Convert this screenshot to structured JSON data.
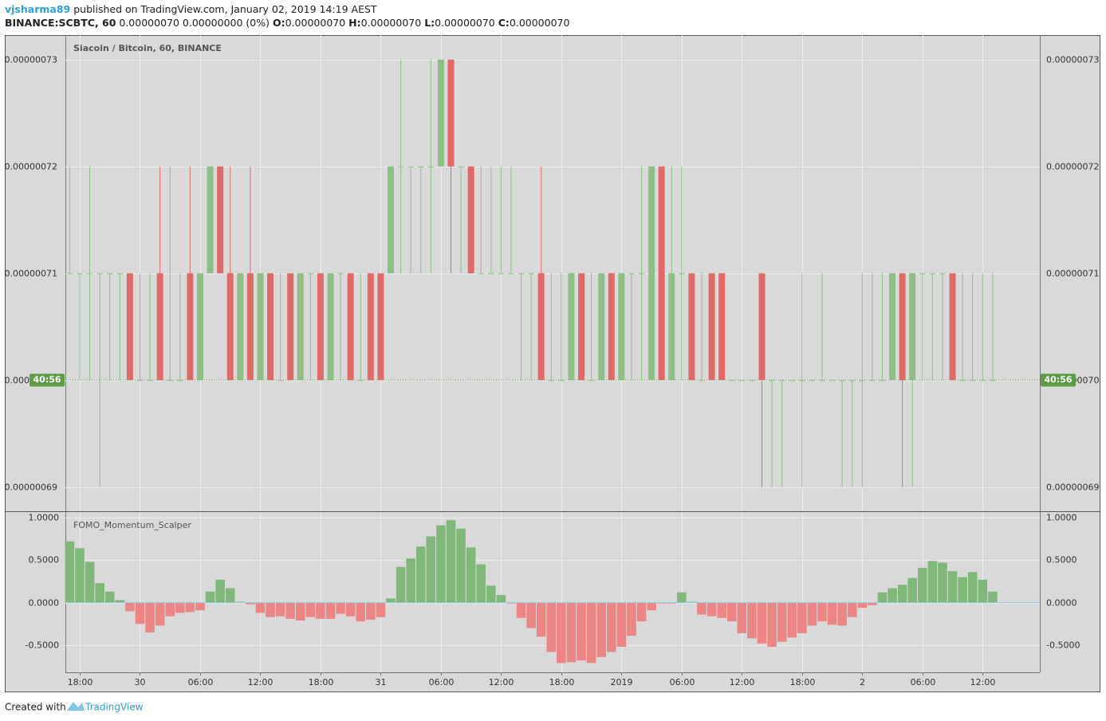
{
  "header": {
    "author": "vjsharma89",
    "published": "published on TradingView.com, January 02, 2019 14:19 AEST",
    "symbol": "BINANCE:SCBTC, 60",
    "change": "0.00000070 0.00000000 (0%)",
    "o_label": "O:",
    "o_value": "0.00000070",
    "h_label": "H:",
    "h_value": "0.00000070",
    "l_label": "L:",
    "l_value": "0.00000070",
    "c_label": "C:",
    "c_value": "0.00000070"
  },
  "footer": {
    "created": "Created with",
    "brand": "TradingView"
  },
  "chart_data": [
    {
      "type": "candlestick",
      "title": "Siacoin / Bitcoin, 60, BINANCE",
      "up_color": "#8fbf88",
      "down_color": "#e06a6a",
      "grid": true,
      "countdown": "40:56",
      "ylim": [
        6.878e-07,
        7.323e-07
      ],
      "yticks": [
        {
          "value": 6.9e-07,
          "label": "0.00000069"
        },
        {
          "value": 7e-07,
          "label": "0.00000070"
        },
        {
          "value": 7.1e-07,
          "label": "0.00000071"
        },
        {
          "value": 7.2e-07,
          "label": "0.00000072"
        },
        {
          "value": 7.3e-07,
          "label": "0.00000073"
        }
      ],
      "xlim": [
        -0.43,
        96.7
      ],
      "xticks": [
        {
          "value": 1,
          "label": "18:00"
        },
        {
          "value": 7,
          "label": "30"
        },
        {
          "value": 13,
          "label": "06:00"
        },
        {
          "value": 19,
          "label": "12:00"
        },
        {
          "value": 25,
          "label": "18:00"
        },
        {
          "value": 31,
          "label": "31"
        },
        {
          "value": 37,
          "label": "06:00"
        },
        {
          "value": 43,
          "label": "12:00"
        },
        {
          "value": 49,
          "label": "18:00"
        },
        {
          "value": 55,
          "label": "2019"
        },
        {
          "value": 61,
          "label": "06:00"
        },
        {
          "value": 67,
          "label": "12:00"
        },
        {
          "value": 73,
          "label": "18:00"
        },
        {
          "value": 79,
          "label": "2"
        },
        {
          "value": 85,
          "label": "06:00"
        },
        {
          "value": 91,
          "label": "12:00"
        }
      ],
      "open": [
        7.1e-07,
        7.1e-07,
        7.1e-07,
        7.1e-07,
        7.1e-07,
        7.1e-07,
        7.1e-07,
        7e-07,
        7e-07,
        7.1e-07,
        7e-07,
        7e-07,
        7.1e-07,
        7e-07,
        7.1e-07,
        7.2e-07,
        7.1e-07,
        7e-07,
        7.1e-07,
        7e-07,
        7.1e-07,
        7e-07,
        7.1e-07,
        7e-07,
        7.1e-07,
        7.1e-07,
        7e-07,
        7.1e-07,
        7.1e-07,
        7e-07,
        7.1e-07,
        7.1e-07,
        7.1e-07,
        7.2e-07,
        7.2e-07,
        7.2e-07,
        7.2e-07,
        7.2e-07,
        7.3e-07,
        7.2e-07,
        7.2e-07,
        7.1e-07,
        7.1e-07,
        7.1e-07,
        7.1e-07,
        7.1e-07,
        7.1e-07,
        7.1e-07,
        7e-07,
        7e-07,
        7e-07,
        7.1e-07,
        7e-07,
        7e-07,
        7.1e-07,
        7e-07,
        7.1e-07,
        7.1e-07,
        7e-07,
        7.2e-07,
        7e-07,
        7.1e-07,
        7.1e-07,
        7e-07,
        7.1e-07,
        7.1e-07,
        7e-07,
        7e-07,
        7e-07,
        7.1e-07,
        7e-07,
        7e-07,
        7e-07,
        7e-07,
        7e-07,
        7e-07,
        7e-07,
        7e-07,
        7e-07,
        7e-07,
        7e-07,
        7e-07,
        7e-07,
        7.1e-07,
        7e-07,
        7.1e-07,
        7.1e-07,
        7.1e-07,
        7.1e-07,
        7e-07,
        7e-07,
        7e-07,
        7e-07
      ],
      "high": [
        7.2e-07,
        7.1e-07,
        7.2e-07,
        7.1e-07,
        7.1e-07,
        7.1e-07,
        7.1e-07,
        7.1e-07,
        7.1e-07,
        7.2e-07,
        7.2e-07,
        7.1e-07,
        7.2e-07,
        7.1e-07,
        7.2e-07,
        7.2e-07,
        7.2e-07,
        7.1e-07,
        7.2e-07,
        7.1e-07,
        7.1e-07,
        7.1e-07,
        7.1e-07,
        7.1e-07,
        7.1e-07,
        7.1e-07,
        7.1e-07,
        7.1e-07,
        7.1e-07,
        7.1e-07,
        7.1e-07,
        7.1e-07,
        7.2e-07,
        7.3e-07,
        7.2e-07,
        7.2e-07,
        7.3e-07,
        7.3e-07,
        7.3e-07,
        7.2e-07,
        7.2e-07,
        7.2e-07,
        7.2e-07,
        7.2e-07,
        7.2e-07,
        7.1e-07,
        7.1e-07,
        7.2e-07,
        7.1e-07,
        7.1e-07,
        7.1e-07,
        7.1e-07,
        7.1e-07,
        7.1e-07,
        7.1e-07,
        7.1e-07,
        7.1e-07,
        7.2e-07,
        7.2e-07,
        7.2e-07,
        7.2e-07,
        7.2e-07,
        7.1e-07,
        7.1e-07,
        7.1e-07,
        7.1e-07,
        7e-07,
        7e-07,
        7e-07,
        7.1e-07,
        7e-07,
        7e-07,
        7e-07,
        7.1e-07,
        7e-07,
        7.1e-07,
        7e-07,
        7e-07,
        7e-07,
        7.1e-07,
        7.1e-07,
        7.1e-07,
        7.1e-07,
        7.1e-07,
        7.1e-07,
        7.1e-07,
        7.1e-07,
        7.1e-07,
        7.1e-07,
        7.1e-07,
        7.1e-07,
        7.1e-07,
        7.1e-07
      ],
      "low": [
        7.1e-07,
        7e-07,
        7e-07,
        6.9e-07,
        7e-07,
        7e-07,
        7e-07,
        7e-07,
        7e-07,
        7e-07,
        7e-07,
        7e-07,
        7e-07,
        7e-07,
        7.1e-07,
        7.1e-07,
        7e-07,
        7e-07,
        7e-07,
        7e-07,
        7e-07,
        7e-07,
        7e-07,
        7e-07,
        7e-07,
        7e-07,
        7e-07,
        7e-07,
        7e-07,
        7e-07,
        7e-07,
        7e-07,
        7.1e-07,
        7.1e-07,
        7.1e-07,
        7.1e-07,
        7.1e-07,
        7.2e-07,
        7.1e-07,
        7.1e-07,
        7.1e-07,
        7.1e-07,
        7.1e-07,
        7.1e-07,
        7.1e-07,
        7e-07,
        7e-07,
        7e-07,
        7e-07,
        7e-07,
        7e-07,
        7e-07,
        7e-07,
        7e-07,
        7e-07,
        7e-07,
        7e-07,
        7e-07,
        7e-07,
        7e-07,
        7e-07,
        7e-07,
        7e-07,
        7e-07,
        7e-07,
        7e-07,
        7e-07,
        7e-07,
        7e-07,
        6.9e-07,
        6.9e-07,
        6.9e-07,
        7e-07,
        6.9e-07,
        7e-07,
        7e-07,
        7e-07,
        6.9e-07,
        6.9e-07,
        6.9e-07,
        7e-07,
        7e-07,
        7e-07,
        6.9e-07,
        6.9e-07,
        7e-07,
        7e-07,
        7e-07,
        7e-07,
        7e-07,
        7e-07,
        7e-07,
        7e-07
      ],
      "close": [
        7.1e-07,
        7.1e-07,
        7.1e-07,
        7.1e-07,
        7.1e-07,
        7.1e-07,
        7e-07,
        7e-07,
        7e-07,
        7e-07,
        7e-07,
        7e-07,
        7e-07,
        7.1e-07,
        7.2e-07,
        7.1e-07,
        7e-07,
        7.1e-07,
        7e-07,
        7.1e-07,
        7e-07,
        7e-07,
        7e-07,
        7.1e-07,
        7.1e-07,
        7e-07,
        7.1e-07,
        7.1e-07,
        7e-07,
        7e-07,
        7e-07,
        7e-07,
        7.2e-07,
        7.2e-07,
        7.2e-07,
        7.2e-07,
        7.2e-07,
        7.3e-07,
        7.2e-07,
        7.2e-07,
        7.1e-07,
        7.1e-07,
        7.1e-07,
        7.1e-07,
        7.1e-07,
        7.1e-07,
        7.1e-07,
        7e-07,
        7e-07,
        7e-07,
        7.1e-07,
        7e-07,
        7e-07,
        7.1e-07,
        7e-07,
        7.1e-07,
        7.1e-07,
        7.1e-07,
        7.2e-07,
        7e-07,
        7.1e-07,
        7.1e-07,
        7e-07,
        7e-07,
        7e-07,
        7e-07,
        7e-07,
        7e-07,
        7e-07,
        7e-07,
        7e-07,
        7e-07,
        7e-07,
        7e-07,
        7e-07,
        7e-07,
        7e-07,
        7e-07,
        7e-07,
        7e-07,
        7e-07,
        7e-07,
        7.1e-07,
        7e-07,
        7.1e-07,
        7.1e-07,
        7.1e-07,
        7.1e-07,
        7e-07,
        7e-07,
        7e-07,
        7e-07,
        7e-07
      ]
    },
    {
      "type": "bar",
      "title": "FOMO_Momentum_Scalper",
      "positive_color": "#82b77b",
      "negative_color": "#ec8585",
      "zero_color": "#8ecae6",
      "grid": true,
      "ylim": [
        -0.82,
        1.066
      ],
      "yticks": [
        {
          "value": -0.5,
          "label": "-0.5000"
        },
        {
          "value": 0,
          "label": "0.0000"
        },
        {
          "value": 0.5,
          "label": "0.5000"
        },
        {
          "value": 1,
          "label": "1.0000"
        }
      ],
      "values": [
        0.72,
        0.64,
        0.48,
        0.23,
        0.13,
        0.03,
        -0.1,
        -0.25,
        -0.35,
        -0.27,
        -0.16,
        -0.12,
        -0.11,
        -0.09,
        0.13,
        0.27,
        0.17,
        0.01,
        -0.02,
        -0.12,
        -0.17,
        -0.16,
        -0.19,
        -0.21,
        -0.17,
        -0.19,
        -0.19,
        -0.13,
        -0.16,
        -0.22,
        -0.2,
        -0.17,
        0.05,
        0.42,
        0.52,
        0.66,
        0.78,
        0.91,
        0.97,
        0.87,
        0.65,
        0.45,
        0.2,
        0.09,
        -0.01,
        -0.18,
        -0.3,
        -0.4,
        -0.58,
        -0.71,
        -0.7,
        -0.68,
        -0.71,
        -0.64,
        -0.58,
        -0.52,
        -0.39,
        -0.22,
        -0.09,
        -0.01,
        -0.01,
        0.12,
        0.01,
        -0.14,
        -0.16,
        -0.18,
        -0.22,
        -0.36,
        -0.42,
        -0.48,
        -0.52,
        -0.46,
        -0.41,
        -0.36,
        -0.27,
        -0.22,
        -0.26,
        -0.27,
        -0.17,
        -0.06,
        -0.03,
        0.12,
        0.17,
        0.21,
        0.29,
        0.41,
        0.49,
        0.47,
        0.37,
        0.3,
        0.36,
        0.27,
        0.13
      ]
    }
  ]
}
